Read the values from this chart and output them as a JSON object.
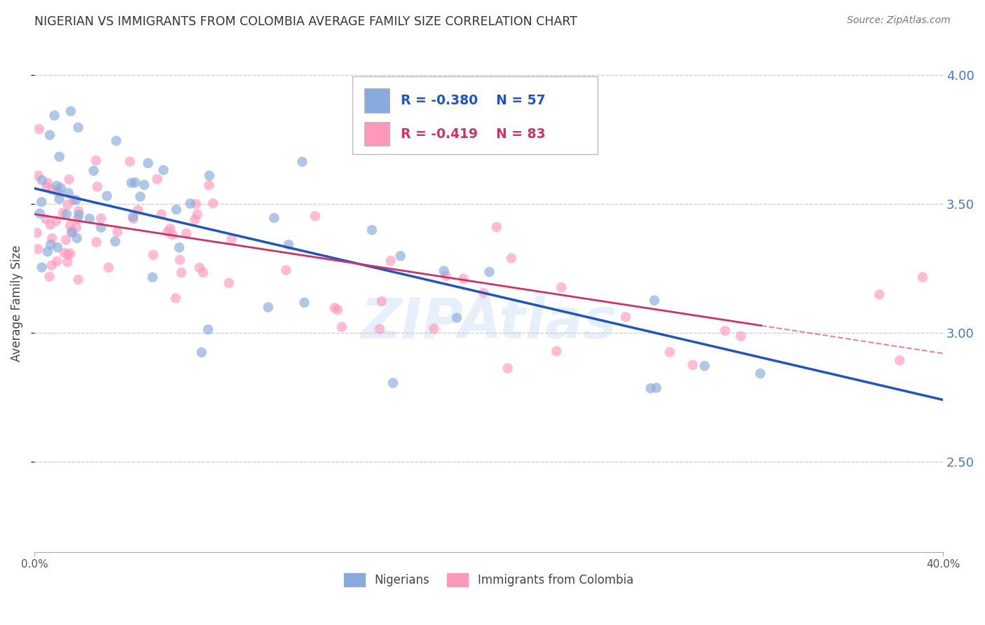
{
  "title": "NIGERIAN VS IMMIGRANTS FROM COLOMBIA AVERAGE FAMILY SIZE CORRELATION CHART",
  "source": "Source: ZipAtlas.com",
  "ylabel": "Average Family Size",
  "yticks": [
    2.5,
    3.0,
    3.5,
    4.0
  ],
  "ymin": 2.15,
  "ymax": 4.08,
  "xmin": 0.0,
  "xmax": 40.0,
  "legend_r1": "R = -0.380",
  "legend_n1": "N = 57",
  "legend_r2": "R = -0.419",
  "legend_n2": "N = 83",
  "color_blue": "#88AADD",
  "color_pink": "#FF99BB",
  "trendline_blue": "#2255BB",
  "trendline_pink": "#CC3366",
  "axis_color": "#4477BB",
  "watermark": "ZIPAtlas",
  "blue_intercept": 3.56,
  "blue_slope": -0.0205,
  "pink_intercept": 3.46,
  "pink_slope": -0.0135,
  "pink_solid_end": 32.0
}
